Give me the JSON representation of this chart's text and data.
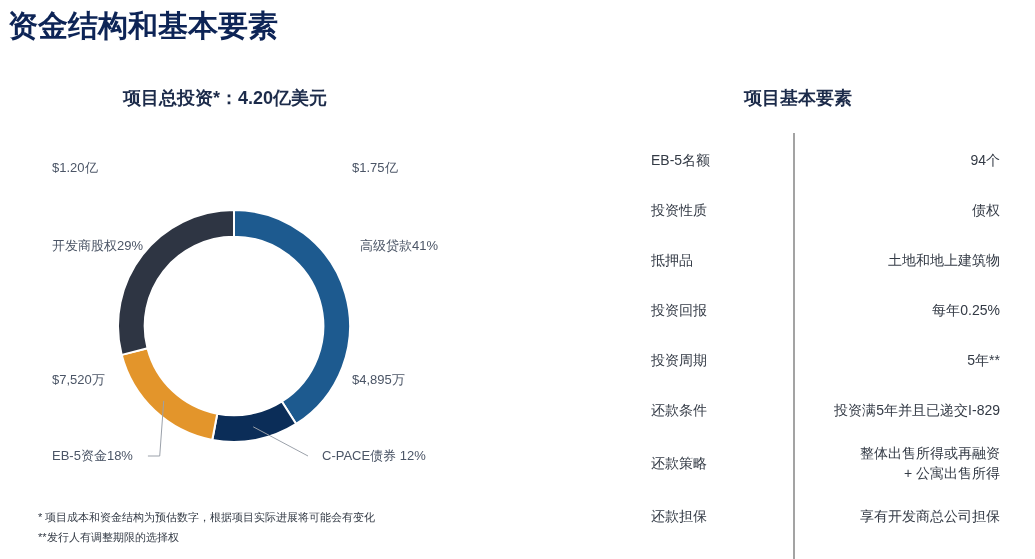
{
  "chart_data": [
    {
      "type": "donut",
      "title": "资金结构和基本要素",
      "subtitle": "项目总投资*：4.20亿美元",
      "categories": [
        "高级贷款41%",
        "C-PACE债券 12%",
        "EB-5资金18%",
        "开发商股权29%"
      ],
      "values": [
        41,
        12,
        18,
        29
      ],
      "colors": [
        "#1d5a8f",
        "#0b2d58",
        "#e3952b",
        "#2e3543"
      ],
      "annotations": [
        {
          "text": "$1.75亿",
          "x": "高级贷款41%"
        },
        {
          "text": "$4,895万",
          "x": "C-PACE债券 12%"
        },
        {
          "text": "$7,520万",
          "x": "EB-5资金18%"
        },
        {
          "text": "$1.20亿",
          "x": "开发商股权29%"
        },
        "* 项目成本和资金结构为预估数字，根据项目实际进展将可能会有变化",
        "**发行人有调整期限的选择权"
      ]
    },
    {
      "type": "other",
      "title": "项目基本要素",
      "y_categories": [
        "EB-5名额",
        "投资性质",
        "抵押品",
        "投资回报",
        "投资周期",
        "还款条件",
        "还款策略",
        "还款担保"
      ],
      "y2_categories": [
        "94个",
        "债权",
        "土地和地上建筑物",
        "每年0.25%",
        "5年**",
        "投资满5年并且已递交I-829",
        "整体出售所得或再融资\n+ 公寓出售所得",
        "享有开发商总公司担保"
      ]
    }
  ]
}
